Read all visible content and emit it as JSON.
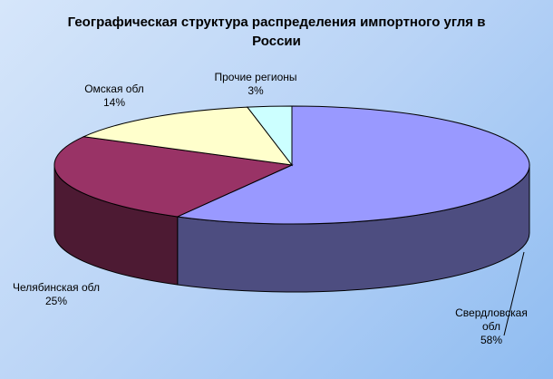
{
  "chart_data": {
    "type": "pie3d",
    "title": "Географическая структура распределения импортного угля в России",
    "categories": [
      "Свердловская обл",
      "Челябинская обл",
      "Омская обл",
      "Прочие регионы"
    ],
    "values": [
      58,
      25,
      14,
      3
    ],
    "value_labels": [
      "58%",
      "25%",
      "14%",
      "3%"
    ],
    "colors": [
      "#9999ff",
      "#993366",
      "#ffffcc",
      "#ccffff"
    ]
  }
}
